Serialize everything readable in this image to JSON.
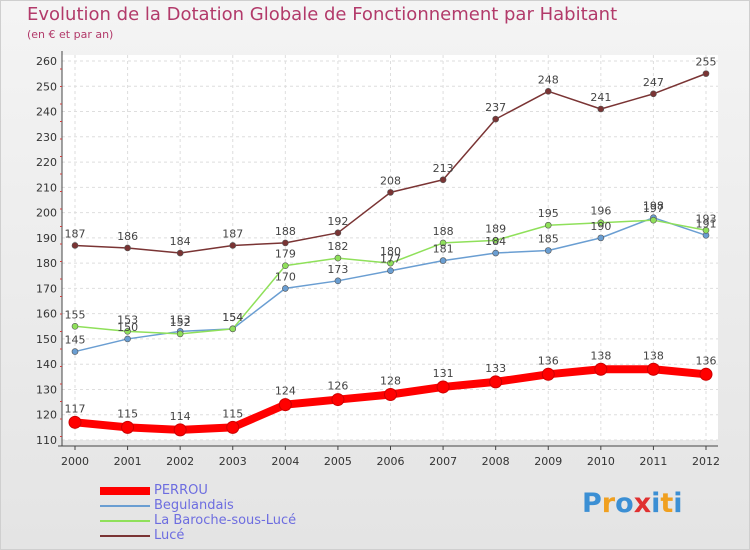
{
  "header": {
    "title": "Evolution de la Dotation Globale de Fonctionnement par Habitant",
    "subtitle": "(en € et par an)"
  },
  "chart_data": {
    "type": "line",
    "title": "Evolution de la Dotation Globale de Fonctionnement par Habitant",
    "subtitle": "(en € et par an)",
    "xlabel": "",
    "ylabel": "",
    "ylim": [
      110,
      260
    ],
    "yticks": [
      "110",
      "120",
      "130",
      "140",
      "150",
      "160",
      "170",
      "180",
      "190",
      "200",
      "210",
      "220",
      "230",
      "240",
      "250",
      "260"
    ],
    "categories": [
      "2000",
      "2001",
      "2002",
      "2003",
      "2004",
      "2005",
      "2006",
      "2007",
      "2008",
      "2009",
      "2010",
      "2011",
      "2012"
    ],
    "grid": true,
    "legend_position": "bottom-left",
    "series": [
      {
        "name": "PERROU",
        "color": "#ff0000",
        "values": [
          117,
          115,
          114,
          115,
          124,
          126,
          128,
          131,
          133,
          136,
          138,
          138,
          136
        ],
        "labels": [
          "117",
          "115",
          "114",
          "115",
          "124",
          "126",
          "128",
          "131",
          "133",
          "136",
          "138",
          "138",
          "136"
        ]
      },
      {
        "name": "Begulandais",
        "color": "#6a9ed2",
        "values": [
          145,
          150,
          153,
          154,
          170,
          173,
          177,
          181,
          184,
          185,
          190,
          198,
          191
        ],
        "labels": [
          "145",
          "150",
          "153",
          "154",
          "170",
          "173",
          "177",
          "181",
          "184",
          "185",
          "190",
          "198",
          "191"
        ]
      },
      {
        "name": "La Baroche-sous-Lucé",
        "color": "#8fe05a",
        "values": [
          155,
          153,
          152,
          154,
          179,
          182,
          180,
          188,
          189,
          195,
          196,
          197,
          193
        ],
        "labels": [
          "155",
          "153",
          "152",
          "154",
          "179",
          "182",
          "180",
          "188",
          "189",
          "195",
          "196",
          "197",
          "193"
        ]
      },
      {
        "name": "Lucé",
        "color": "#7a3434",
        "values": [
          187,
          186,
          184,
          187,
          188,
          192,
          208,
          213,
          237,
          248,
          241,
          247,
          255
        ],
        "labels": [
          "187",
          "186",
          "184",
          "187",
          "188",
          "192",
          "208",
          "213",
          "237",
          "248",
          "241",
          "247",
          "255"
        ]
      }
    ]
  },
  "brand": {
    "text": "Proxiti",
    "letters": [
      "P",
      "r",
      "o",
      "x",
      "i",
      "t",
      "i"
    ],
    "colors": [
      "#3b8fd4",
      "#f0a020",
      "#3b8fd4",
      "#e03030",
      "#3b8fd4",
      "#f0a020",
      "#3b8fd4"
    ]
  }
}
